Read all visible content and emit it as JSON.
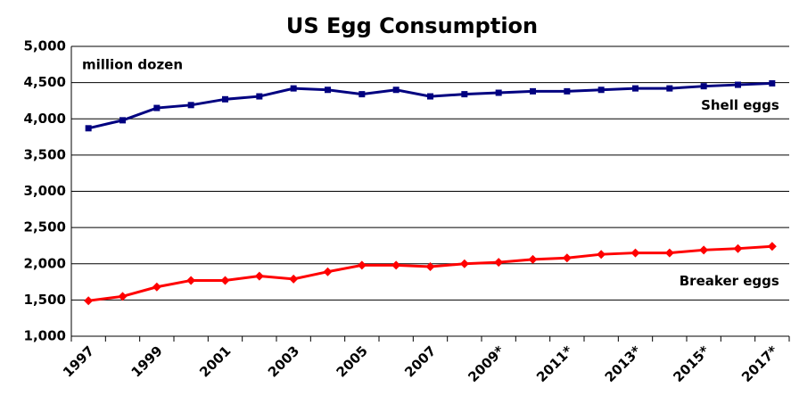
{
  "chart_data": {
    "type": "line",
    "title": "US Egg Consumption",
    "annotation": "million dozen",
    "categories": [
      "1997",
      null,
      "1999",
      null,
      "2001",
      null,
      "2003",
      null,
      "2005",
      null,
      "2007",
      null,
      "2009*",
      null,
      "2011*",
      null,
      "2013*",
      null,
      "2015*",
      null,
      "2017*"
    ],
    "series": [
      {
        "name": "Shell eggs",
        "color": "#000080",
        "marker": "square",
        "values": [
          3870,
          3980,
          4150,
          4190,
          4270,
          4310,
          4420,
          4400,
          4340,
          4400,
          4310,
          4340,
          4360,
          4380,
          4380,
          4400,
          4420,
          4420,
          4450,
          4470,
          4490
        ]
      },
      {
        "name": "Breaker eggs",
        "color": "#ff0000",
        "marker": "diamond",
        "values": [
          1490,
          1550,
          1680,
          1770,
          1770,
          1830,
          1790,
          1890,
          1980,
          1980,
          1960,
          2000,
          2020,
          2060,
          2080,
          2130,
          2150,
          2150,
          2190,
          2210,
          2240
        ]
      }
    ],
    "ylim": [
      1000,
      5000
    ],
    "yticks": [
      {
        "value": 1000,
        "label": "1,000"
      },
      {
        "value": 1500,
        "label": "1,500"
      },
      {
        "value": 2000,
        "label": "2,000"
      },
      {
        "value": 2500,
        "label": "2,500"
      },
      {
        "value": 3000,
        "label": "3,000"
      },
      {
        "value": 3500,
        "label": "3,500"
      },
      {
        "value": 4000,
        "label": "4,000"
      },
      {
        "value": 4500,
        "label": "4,500"
      },
      {
        "value": 5000,
        "label": "5,000"
      }
    ],
    "grid": true
  }
}
